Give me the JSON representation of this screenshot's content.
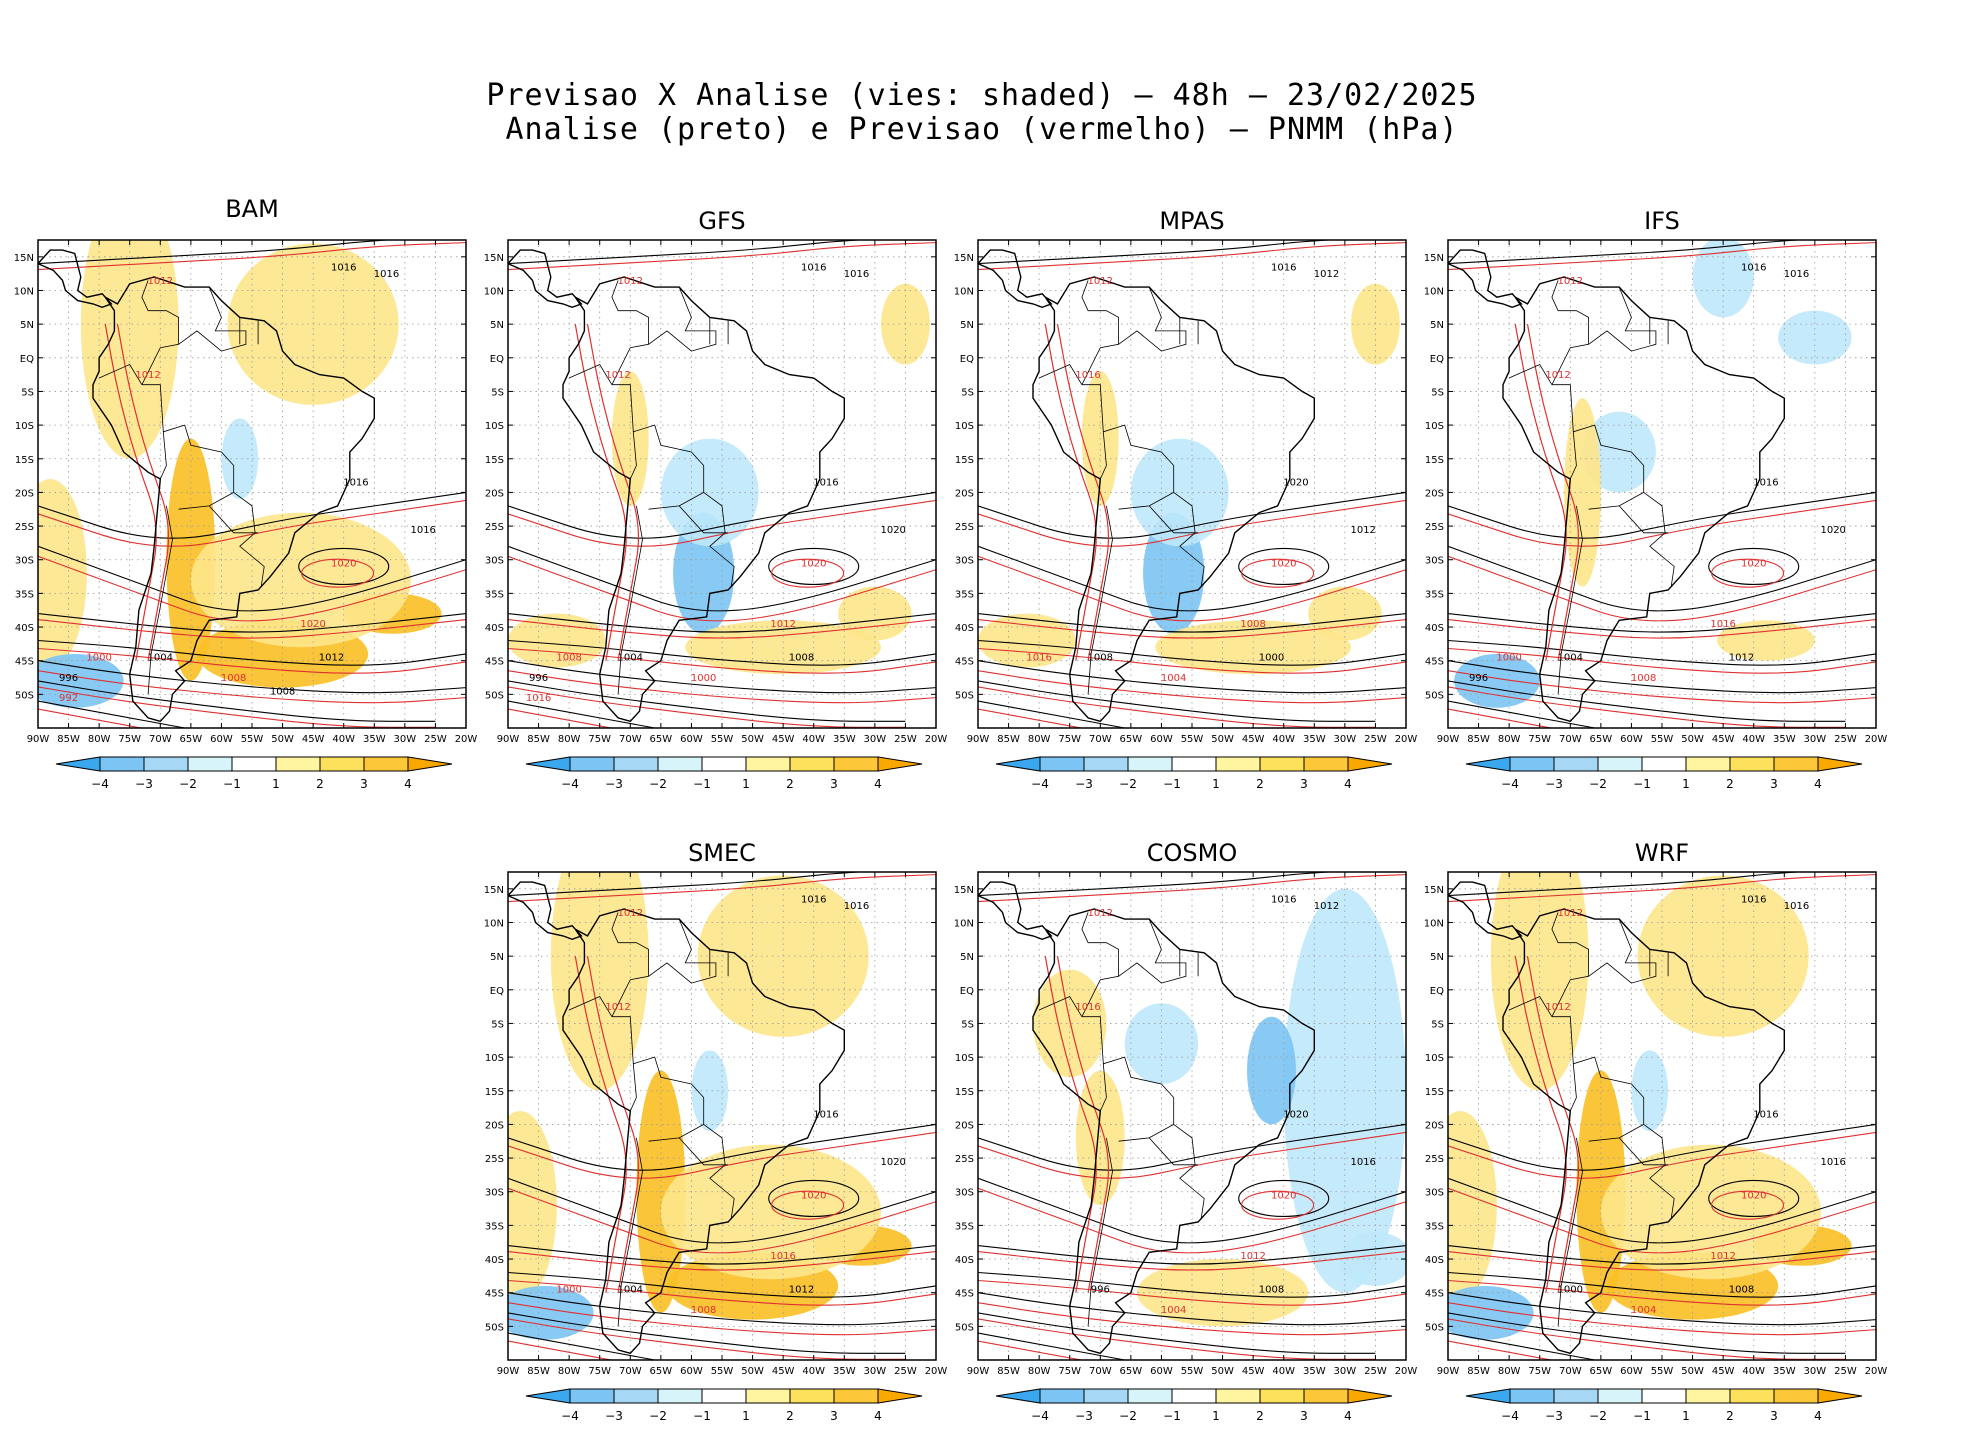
{
  "figure": {
    "title_line1": "Previsao X Analise (vies: shaded) – 48h – 23/02/2025",
    "title_line2": "Analise (preto) e Previsao (vermelho) – PNMM (hPa)"
  },
  "lat_labels": [
    "15N",
    "10N",
    "5N",
    "EQ",
    "5S",
    "10S",
    "15S",
    "20S",
    "25S",
    "30S",
    "35S",
    "40S",
    "45S",
    "50S"
  ],
  "lon_labels": [
    "90W",
    "85W",
    "80W",
    "75W",
    "70W",
    "65W",
    "60W",
    "55W",
    "50W",
    "45W",
    "40W",
    "35W",
    "30W",
    "25W",
    "20W"
  ],
  "colorbar": {
    "labels": [
      "-4",
      "-3",
      "-2",
      "-1",
      "1",
      "2",
      "3",
      "4"
    ],
    "colors": [
      "#3aa7ee",
      "#7cc4f4",
      "#a6d8f5",
      "#d8f4fb",
      "#ffffff",
      "#fff4a0",
      "#fde05c",
      "#fcc83a",
      "#f9a800"
    ]
  },
  "colors": {
    "analysis": "#000000",
    "forecast": "#e03030",
    "positive": "#fde68a",
    "positive_strong": "#fbbf24",
    "negative": "#bfe8fb",
    "negative_strong": "#7cc4f4"
  },
  "panels": [
    {
      "id": "bam",
      "name": "BAM",
      "isobars": [
        "1016",
        "1012",
        "1016",
        "1012",
        "1016",
        "1020",
        "1016",
        "1020",
        "1012",
        "1008",
        "1004",
        "1000",
        "996",
        "992",
        "1008"
      ],
      "bias": "warm"
    },
    {
      "id": "gfs",
      "name": "GFS",
      "isobars": [
        "1016",
        "1012",
        "1016",
        "1012",
        "1016",
        "1020",
        "1020",
        "1012",
        "1008",
        "1000",
        "1004",
        "1008",
        "996",
        "1016"
      ],
      "bias": "mixed"
    },
    {
      "id": "mpas",
      "name": "MPAS",
      "isobars": [
        "1016",
        "1012",
        "1012",
        "1016",
        "1020",
        "1020",
        "1012",
        "1008",
        "1000",
        "1004",
        "1008",
        "1016"
      ],
      "bias": "mixed"
    },
    {
      "id": "ifs",
      "name": "IFS",
      "isobars": [
        "1016",
        "1012",
        "1016",
        "1012",
        "1016",
        "1020",
        "1020",
        "1016",
        "1012",
        "1008",
        "1004",
        "1000",
        "996"
      ],
      "bias": "neutral"
    },
    {
      "id": "smec",
      "name": "SMEC",
      "isobars": [
        "1016",
        "1012",
        "1016",
        "1012",
        "1016",
        "1020",
        "1020",
        "1016",
        "1012",
        "1008",
        "1004",
        "1000"
      ],
      "bias": "warm"
    },
    {
      "id": "cosmo",
      "name": "COSMO",
      "isobars": [
        "1016",
        "1012",
        "1012",
        "1016",
        "1020",
        "1020",
        "1016",
        "1012",
        "1008",
        "1004",
        "996"
      ],
      "bias": "cold"
    },
    {
      "id": "wrf",
      "name": "WRF",
      "isobars": [
        "1016",
        "1012",
        "1016",
        "1012",
        "1016",
        "1020",
        "1016",
        "1012",
        "1008",
        "1004",
        "1000"
      ],
      "bias": "warm"
    }
  ]
}
